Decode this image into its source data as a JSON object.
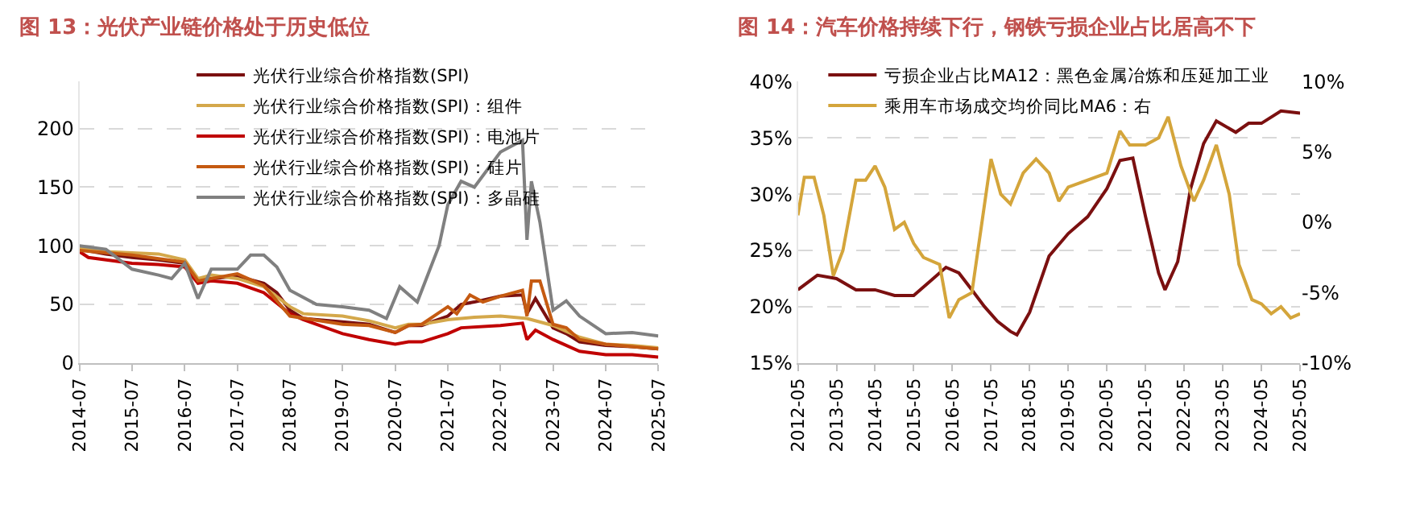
{
  "chart_data": [
    {
      "type": "line",
      "title": "图 13：光伏产业链价格处于历史低位",
      "legend": "top",
      "grid": "y",
      "marker": "none",
      "line_style": "solid",
      "xlim": [
        "2014-07",
        "2025-07"
      ],
      "xticks": [
        {
          "value": "2014-07",
          "label": "2014-07"
        },
        {
          "value": "2015-07",
          "label": "2015-07"
        },
        {
          "value": "2016-07",
          "label": "2016-07"
        },
        {
          "value": "2017-07",
          "label": "2017-07"
        },
        {
          "value": "2018-07",
          "label": "2018-07"
        },
        {
          "value": "2019-07",
          "label": "2019-07"
        },
        {
          "value": "2020-07",
          "label": "2020-07"
        },
        {
          "value": "2021-07",
          "label": "2021-07"
        },
        {
          "value": "2022-07",
          "label": "2022-07"
        },
        {
          "value": "2023-07",
          "label": "2023-07"
        },
        {
          "value": "2024-07",
          "label": "2024-07"
        },
        {
          "value": "2025-07",
          "label": "2025-07"
        }
      ],
      "ylim": [
        0,
        240
      ],
      "yticks": [
        0,
        50,
        100,
        150,
        200
      ],
      "series": [
        {
          "name": "光伏行业综合价格指数(SPI)",
          "color": "#7b1010",
          "x": [
            "2014-07",
            "2015-01",
            "2015-07",
            "2016-01",
            "2016-07",
            "2016-10",
            "2017-01",
            "2017-07",
            "2018-01",
            "2018-04",
            "2018-07",
            "2018-10",
            "2019-07",
            "2020-01",
            "2020-07",
            "2020-10",
            "2021-01",
            "2021-07",
            "2021-10",
            "2022-01",
            "2022-07",
            "2022-12",
            "2023-01",
            "2023-03",
            "2023-07",
            "2023-10",
            "2024-01",
            "2024-07",
            "2025-01",
            "2025-07"
          ],
          "values": [
            97,
            93,
            90,
            88,
            85,
            70,
            72,
            74,
            68,
            60,
            45,
            38,
            35,
            33,
            26,
            32,
            32,
            40,
            50,
            52,
            57,
            58,
            42,
            55,
            30,
            25,
            18,
            15,
            14,
            12
          ]
        },
        {
          "name": "光伏行业综合价格指数(SPI)：组件",
          "color": "#d4a84b",
          "x": [
            "2014-07",
            "2015-01",
            "2015-07",
            "2016-01",
            "2016-07",
            "2016-10",
            "2017-01",
            "2017-07",
            "2018-01",
            "2018-07",
            "2018-10",
            "2019-07",
            "2020-01",
            "2020-07",
            "2020-10",
            "2021-01",
            "2021-07",
            "2022-01",
            "2022-07",
            "2023-01",
            "2023-07",
            "2024-01",
            "2024-07",
            "2025-01",
            "2025-07"
          ],
          "values": [
            98,
            95,
            94,
            93,
            88,
            72,
            75,
            72,
            65,
            48,
            42,
            40,
            36,
            30,
            33,
            33,
            37,
            39,
            40,
            38,
            32,
            22,
            16,
            15,
            13
          ]
        },
        {
          "name": "光伏行业综合价格指数(SPI)：电池片",
          "color": "#c00000",
          "x": [
            "2014-07",
            "2014-09",
            "2015-07",
            "2016-01",
            "2016-07",
            "2016-10",
            "2017-01",
            "2017-07",
            "2018-01",
            "2018-07",
            "2018-10",
            "2019-07",
            "2020-01",
            "2020-07",
            "2020-10",
            "2021-01",
            "2021-07",
            "2021-10",
            "2022-07",
            "2022-12",
            "2023-01",
            "2023-03",
            "2023-07",
            "2024-01",
            "2024-07",
            "2025-01",
            "2025-07"
          ],
          "values": [
            95,
            90,
            85,
            84,
            82,
            68,
            70,
            68,
            60,
            42,
            37,
            25,
            20,
            16,
            18,
            18,
            25,
            30,
            32,
            34,
            20,
            28,
            20,
            10,
            7,
            7,
            5
          ]
        },
        {
          "name": "光伏行业综合价格指数(SPI)：硅片",
          "color": "#c55a11",
          "x": [
            "2014-07",
            "2015-07",
            "2016-07",
            "2016-10",
            "2017-07",
            "2018-01",
            "2018-07",
            "2019-07",
            "2020-01",
            "2020-07",
            "2020-10",
            "2021-01",
            "2021-07",
            "2021-09",
            "2021-12",
            "2022-03",
            "2022-07",
            "2022-12",
            "2023-01",
            "2023-02",
            "2023-04",
            "2023-07",
            "2023-10",
            "2024-01",
            "2024-07",
            "2025-01",
            "2025-07"
          ],
          "values": [
            96,
            92,
            86,
            70,
            76,
            66,
            40,
            33,
            32,
            26,
            32,
            33,
            48,
            42,
            58,
            52,
            57,
            62,
            40,
            70,
            70,
            33,
            30,
            20,
            16,
            14,
            12
          ]
        },
        {
          "name": "光伏行业综合价格指数(SPI)：多晶硅",
          "color": "#808080",
          "x": [
            "2014-07",
            "2015-01",
            "2015-07",
            "2016-01",
            "2016-04",
            "2016-07",
            "2016-10",
            "2017-01",
            "2017-07",
            "2017-10",
            "2018-01",
            "2018-04",
            "2018-07",
            "2019-01",
            "2019-07",
            "2020-01",
            "2020-05",
            "2020-08",
            "2020-12",
            "2021-05",
            "2021-07",
            "2021-10",
            "2022-01",
            "2022-07",
            "2022-12",
            "2023-01",
            "2023-02",
            "2023-04",
            "2023-07",
            "2023-10",
            "2024-01",
            "2024-07",
            "2025-01",
            "2025-07"
          ],
          "values": [
            100,
            97,
            80,
            75,
            72,
            85,
            55,
            80,
            80,
            92,
            92,
            82,
            62,
            50,
            48,
            45,
            38,
            65,
            52,
            100,
            135,
            155,
            150,
            180,
            190,
            105,
            155,
            120,
            45,
            53,
            40,
            25,
            26,
            23
          ]
        }
      ]
    },
    {
      "type": "line",
      "title": "图 14：汽车价格持续下行，钢铁亏损企业占比居高不下",
      "legend": "top",
      "grid": "y",
      "marker": "none",
      "line_style": "solid",
      "xlim": [
        "2012-05",
        "2025-05"
      ],
      "xticks": [
        {
          "value": "2012-05",
          "label": "2012-05"
        },
        {
          "value": "2013-05",
          "label": "2013-05"
        },
        {
          "value": "2014-05",
          "label": "2014-05"
        },
        {
          "value": "2015-05",
          "label": "2015-05"
        },
        {
          "value": "2016-05",
          "label": "2016-05"
        },
        {
          "value": "2017-05",
          "label": "2017-05"
        },
        {
          "value": "2018-05",
          "label": "2018-05"
        },
        {
          "value": "2019-05",
          "label": "2019-05"
        },
        {
          "value": "2020-05",
          "label": "2020-05"
        },
        {
          "value": "2021-05",
          "label": "2021-05"
        },
        {
          "value": "2022-05",
          "label": "2022-05"
        },
        {
          "value": "2023-05",
          "label": "2023-05"
        },
        {
          "value": "2024-05",
          "label": "2024-05"
        },
        {
          "value": "2025-05",
          "label": "2025-05"
        }
      ],
      "ylim": [
        15,
        40
      ],
      "yticks": [
        {
          "value": 15,
          "label": "15%"
        },
        {
          "value": 20,
          "label": "20%"
        },
        {
          "value": 25,
          "label": "25%"
        },
        {
          "value": 30,
          "label": "30%"
        },
        {
          "value": 35,
          "label": "35%"
        },
        {
          "value": 40,
          "label": "40%"
        }
      ],
      "y2lim": [
        -10,
        10
      ],
      "y2ticks": [
        {
          "value": -10,
          "label": "-10%"
        },
        {
          "value": -5,
          "label": "-5%"
        },
        {
          "value": 0,
          "label": "0%"
        },
        {
          "value": 5,
          "label": "5%"
        },
        {
          "value": 10,
          "label": "10%"
        }
      ],
      "series": [
        {
          "name": "亏损企业占比MA12：黑色金属冶炼和压延加工业",
          "color": "#7b1010",
          "x": [
            "2012-05",
            "2012-11",
            "2013-05",
            "2013-11",
            "2014-05",
            "2014-11",
            "2015-05",
            "2015-11",
            "2016-03",
            "2016-07",
            "2016-11",
            "2017-03",
            "2017-07",
            "2017-11",
            "2018-01",
            "2018-05",
            "2018-11",
            "2019-05",
            "2019-11",
            "2020-05",
            "2020-09",
            "2021-01",
            "2021-05",
            "2021-09",
            "2021-11",
            "2022-03",
            "2022-07",
            "2022-11",
            "2023-03",
            "2023-09",
            "2024-01",
            "2024-05",
            "2024-11",
            "2025-05"
          ],
          "values": [
            21.5,
            22.8,
            22.5,
            21.5,
            21.5,
            21.0,
            21.0,
            22.5,
            23.5,
            23.0,
            21.5,
            20.0,
            18.7,
            17.8,
            17.5,
            19.5,
            24.5,
            26.5,
            28.0,
            30.5,
            33.0,
            33.2,
            28.0,
            23.0,
            21.5,
            24.0,
            30.5,
            34.5,
            36.5,
            35.5,
            36.3,
            36.3,
            37.4,
            37.2
          ]
        },
        {
          "name": "乘用车市场成交均价同比MA6：右",
          "color": "#d4a53b",
          "axis": "y2",
          "x": [
            "2012-05",
            "2012-07",
            "2012-10",
            "2013-01",
            "2013-04",
            "2013-07",
            "2013-11",
            "2014-02",
            "2014-05",
            "2014-08",
            "2014-11",
            "2015-02",
            "2015-05",
            "2015-08",
            "2016-01",
            "2016-04",
            "2016-07",
            "2016-11",
            "2017-05",
            "2017-08",
            "2017-11",
            "2018-03",
            "2018-07",
            "2018-11",
            "2019-02",
            "2019-05",
            "2019-11",
            "2020-05",
            "2020-09",
            "2020-12",
            "2021-05",
            "2021-09",
            "2021-12",
            "2022-04",
            "2022-08",
            "2022-11",
            "2023-03",
            "2023-07",
            "2023-10",
            "2024-02",
            "2024-05",
            "2024-08",
            "2024-11",
            "2025-02",
            "2025-05"
          ],
          "values": [
            0.5,
            3.2,
            3.2,
            0.5,
            -3.8,
            -2,
            3,
            3.0,
            4.0,
            2.5,
            -0.5,
            0,
            -1.5,
            -2.5,
            -3,
            -6.8,
            -5.5,
            -5,
            4.5,
            2,
            1.3,
            3.5,
            4.5,
            3.5,
            1.5,
            2.5,
            3.0,
            3.5,
            6.5,
            5.5,
            5.5,
            6.0,
            7.5,
            4.0,
            1.5,
            3.0,
            5.5,
            2,
            -3,
            -5.5,
            -5.8,
            -6.5,
            -6.0,
            -6.8,
            -6.5
          ]
        }
      ]
    }
  ]
}
